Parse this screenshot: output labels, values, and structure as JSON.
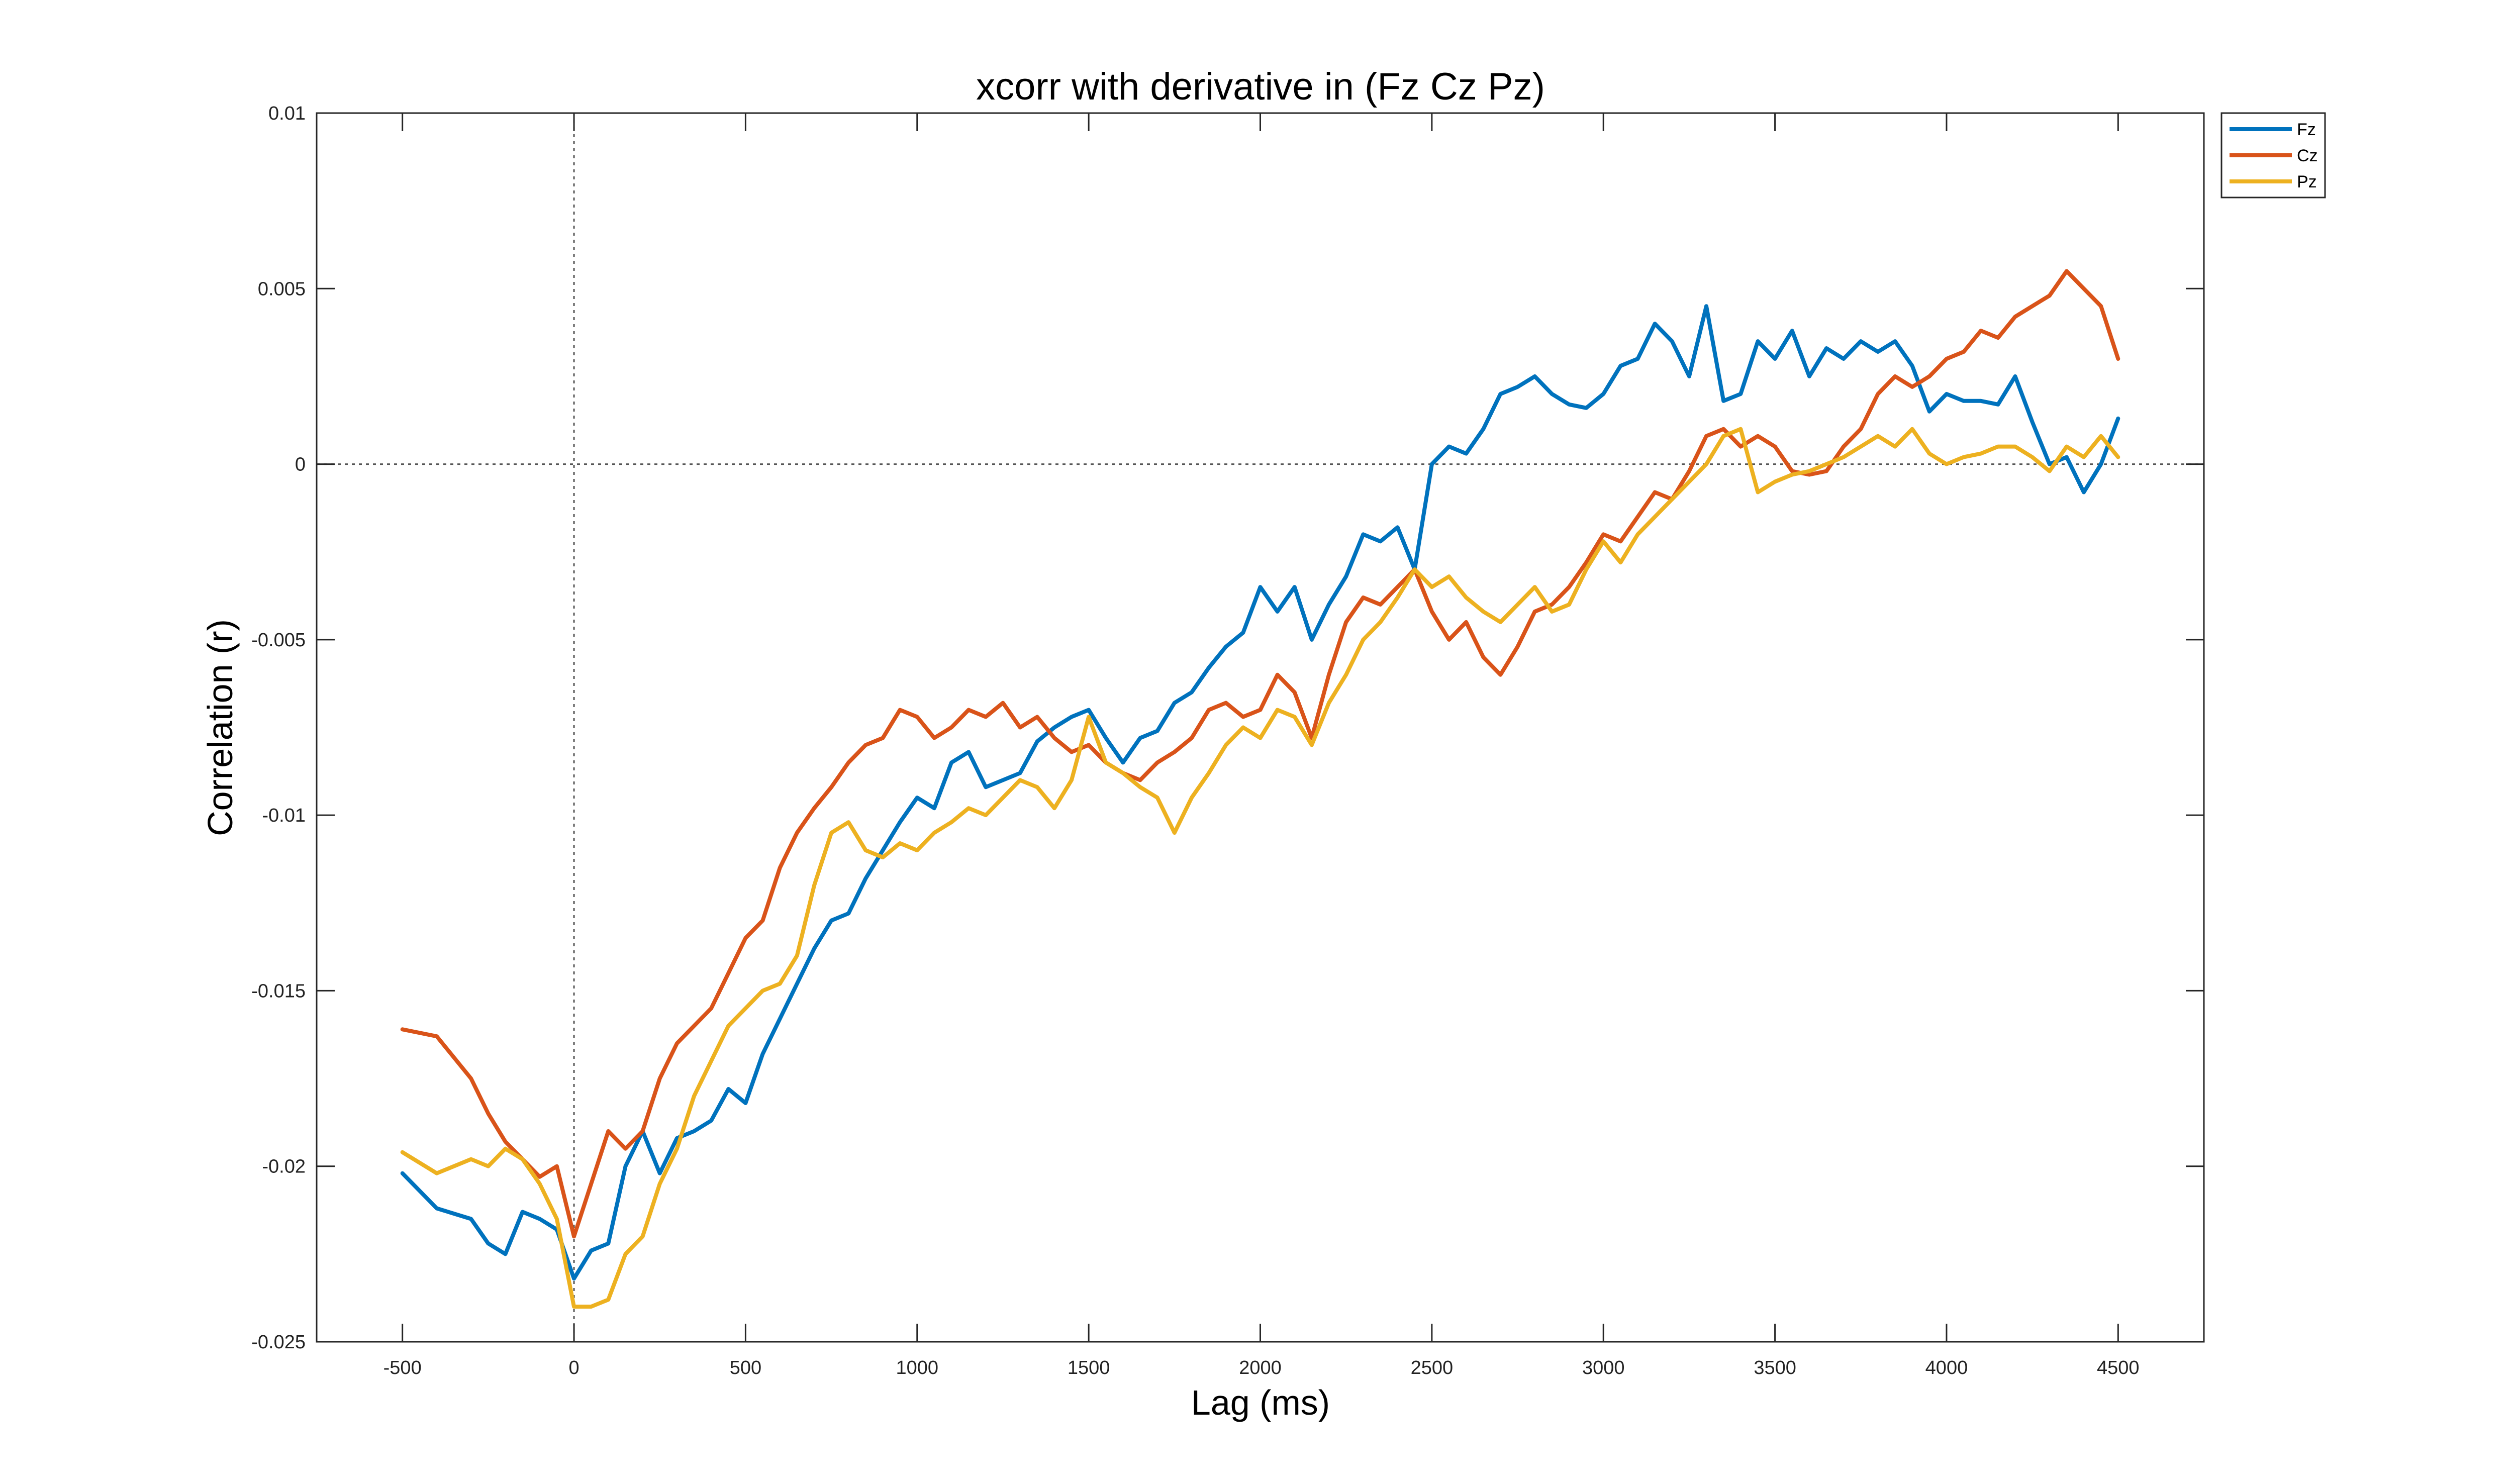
{
  "chart_data": {
    "type": "line",
    "title": "xcorr with derivative in (Fz Cz Pz)",
    "xlabel": "Lag (ms)",
    "ylabel": "Correlation (r)",
    "xlim": [
      -750,
      4750
    ],
    "ylim": [
      -0.025,
      0.01
    ],
    "xticks": [
      -500,
      0,
      500,
      1000,
      1500,
      2000,
      2500,
      3000,
      3500,
      4000,
      4500
    ],
    "xtick_labels": [
      "-500",
      "0",
      "500",
      "1000",
      "1500",
      "2000",
      "2500",
      "3000",
      "3500",
      "4000",
      "4500"
    ],
    "yticks": [
      -0.025,
      -0.02,
      -0.015,
      -0.01,
      -0.005,
      0,
      0.005,
      0.01
    ],
    "ytick_labels": [
      "-0.025",
      "-0.02",
      "-0.015",
      "-0.01",
      "-0.005",
      "0",
      "0.005",
      "0.01"
    ],
    "reference_lines": {
      "x": 0,
      "y": 0
    },
    "grid": false,
    "legend_position": "outside-top-right",
    "x": [
      -500,
      -400,
      -300,
      -250,
      -200,
      -150,
      -100,
      -50,
      0,
      50,
      100,
      150,
      200,
      250,
      300,
      350,
      400,
      450,
      500,
      550,
      600,
      650,
      700,
      750,
      800,
      850,
      900,
      950,
      1000,
      1050,
      1100,
      1150,
      1200,
      1250,
      1300,
      1350,
      1400,
      1450,
      1500,
      1550,
      1600,
      1650,
      1700,
      1750,
      1800,
      1850,
      1900,
      1950,
      2000,
      2050,
      2100,
      2150,
      2200,
      2250,
      2300,
      2350,
      2400,
      2450,
      2500,
      2550,
      2600,
      2650,
      2700,
      2750,
      2800,
      2850,
      2900,
      2950,
      3000,
      3050,
      3100,
      3150,
      3200,
      3250,
      3300,
      3350,
      3400,
      3450,
      3500,
      3550,
      3600,
      3650,
      3700,
      3750,
      3800,
      3850,
      3900,
      3950,
      4000,
      4050,
      4100,
      4150,
      4200,
      4250,
      4300,
      4350,
      4400,
      4450,
      4500
    ],
    "series": [
      {
        "name": "Fz",
        "color": "#0072BD",
        "values": [
          -0.0202,
          -0.0212,
          -0.0215,
          -0.0222,
          -0.0225,
          -0.0213,
          -0.0215,
          -0.0218,
          -0.0232,
          -0.0224,
          -0.0222,
          -0.02,
          -0.019,
          -0.0202,
          -0.0192,
          -0.019,
          -0.0187,
          -0.0178,
          -0.0182,
          -0.0168,
          -0.0158,
          -0.0148,
          -0.0138,
          -0.013,
          -0.0128,
          -0.0118,
          -0.011,
          -0.0102,
          -0.0095,
          -0.0098,
          -0.0085,
          -0.0082,
          -0.0092,
          -0.009,
          -0.0088,
          -0.0079,
          -0.0075,
          -0.0072,
          -0.007,
          -0.0078,
          -0.0085,
          -0.0078,
          -0.0076,
          -0.0068,
          -0.0065,
          -0.0058,
          -0.0052,
          -0.0048,
          -0.0035,
          -0.0042,
          -0.0035,
          -0.005,
          -0.004,
          -0.0032,
          -0.002,
          -0.0022,
          -0.0018,
          -0.003,
          0.0,
          0.0005,
          0.0003,
          0.001,
          0.002,
          0.0022,
          0.0025,
          0.002,
          0.0017,
          0.0016,
          0.002,
          0.0028,
          0.003,
          0.004,
          0.0035,
          0.0025,
          0.0045,
          0.0018,
          0.002,
          0.0035,
          0.003,
          0.0038,
          0.0025,
          0.0033,
          0.003,
          0.0035,
          0.0032,
          0.0035,
          0.0028,
          0.0015,
          0.002,
          0.0018,
          0.0018,
          0.0017,
          0.0025,
          0.0012,
          0.0,
          0.0002,
          -0.0008,
          0.0,
          0.0013
        ]
      },
      {
        "name": "Cz",
        "color": "#D95319",
        "values": [
          -0.0161,
          -0.0163,
          -0.0175,
          -0.0185,
          -0.0193,
          -0.0198,
          -0.0203,
          -0.02,
          -0.022,
          -0.0205,
          -0.019,
          -0.0195,
          -0.019,
          -0.0175,
          -0.0165,
          -0.016,
          -0.0155,
          -0.0145,
          -0.0135,
          -0.013,
          -0.0115,
          -0.0105,
          -0.0098,
          -0.0092,
          -0.0085,
          -0.008,
          -0.0078,
          -0.007,
          -0.0072,
          -0.0078,
          -0.0075,
          -0.007,
          -0.0072,
          -0.0068,
          -0.0075,
          -0.0072,
          -0.0078,
          -0.0082,
          -0.008,
          -0.0085,
          -0.0088,
          -0.009,
          -0.0085,
          -0.0082,
          -0.0078,
          -0.007,
          -0.0068,
          -0.0072,
          -0.007,
          -0.006,
          -0.0065,
          -0.0078,
          -0.006,
          -0.0045,
          -0.0038,
          -0.004,
          -0.0035,
          -0.003,
          -0.0042,
          -0.005,
          -0.0045,
          -0.0055,
          -0.006,
          -0.0052,
          -0.0042,
          -0.004,
          -0.0035,
          -0.0028,
          -0.002,
          -0.0022,
          -0.0015,
          -0.0008,
          -0.001,
          -0.0002,
          0.0008,
          0.001,
          0.0005,
          0.0008,
          0.0005,
          -0.0002,
          -0.0003,
          -0.0002,
          0.0005,
          0.001,
          0.002,
          0.0025,
          0.0022,
          0.0025,
          0.003,
          0.0032,
          0.0038,
          0.0036,
          0.0042,
          0.0045,
          0.0048,
          0.0055,
          0.005,
          0.0045,
          0.003
        ]
      },
      {
        "name": "Pz",
        "color": "#EDB120",
        "values": [
          -0.0196,
          -0.0202,
          -0.0198,
          -0.02,
          -0.0195,
          -0.0198,
          -0.0205,
          -0.0215,
          -0.024,
          -0.024,
          -0.0238,
          -0.0225,
          -0.022,
          -0.0205,
          -0.0195,
          -0.018,
          -0.017,
          -0.016,
          -0.0155,
          -0.015,
          -0.0148,
          -0.014,
          -0.012,
          -0.0105,
          -0.0102,
          -0.011,
          -0.0112,
          -0.0108,
          -0.011,
          -0.0105,
          -0.0102,
          -0.0098,
          -0.01,
          -0.0095,
          -0.009,
          -0.0092,
          -0.0098,
          -0.009,
          -0.0072,
          -0.0085,
          -0.0088,
          -0.0092,
          -0.0095,
          -0.0105,
          -0.0095,
          -0.0088,
          -0.008,
          -0.0075,
          -0.0078,
          -0.007,
          -0.0072,
          -0.008,
          -0.0068,
          -0.006,
          -0.005,
          -0.0045,
          -0.0038,
          -0.003,
          -0.0035,
          -0.0032,
          -0.0038,
          -0.0042,
          -0.0045,
          -0.004,
          -0.0035,
          -0.0042,
          -0.004,
          -0.003,
          -0.0022,
          -0.0028,
          -0.002,
          -0.0015,
          -0.001,
          -0.0005,
          0.0,
          0.0008,
          0.001,
          -0.0008,
          -0.0005,
          -0.0003,
          -0.0002,
          0.0,
          0.0002,
          0.0005,
          0.0008,
          0.0005,
          0.001,
          0.0003,
          0.0,
          0.0002,
          0.0003,
          0.0005,
          0.0005,
          0.0002,
          -0.0002,
          0.0005,
          0.0002,
          0.0008,
          0.0002
        ]
      }
    ]
  }
}
